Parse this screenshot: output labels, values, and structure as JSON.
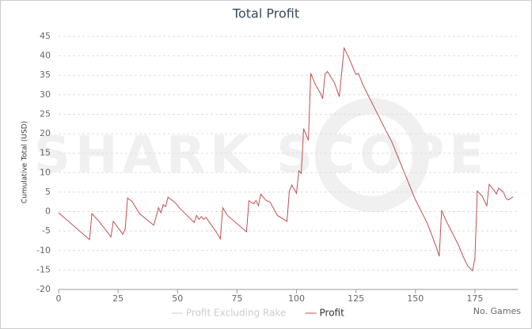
{
  "chart_data": {
    "type": "line",
    "title": "Total Profit",
    "watermark": "SHARK SCOPE",
    "y_label": "Cumulative Total (USD)",
    "x_label": "No. Games",
    "x": [
      0,
      13,
      14,
      17,
      22,
      23,
      27,
      28,
      29,
      31,
      34,
      40,
      42,
      43,
      44,
      45,
      46,
      49,
      51,
      57,
      58,
      59,
      60,
      61,
      62,
      66,
      68,
      69,
      71,
      79,
      80,
      82,
      83,
      84,
      85,
      87,
      89,
      92,
      96,
      97,
      98,
      100,
      101,
      102,
      103,
      105,
      106,
      108,
      110,
      111,
      112,
      113,
      115,
      116,
      118,
      120,
      122,
      125,
      126,
      128,
      130,
      137,
      140,
      150,
      155,
      159,
      160,
      161,
      163,
      168,
      170,
      172,
      174,
      175,
      176,
      178,
      180,
      181,
      183,
      184,
      185,
      187,
      188,
      189,
      191
    ],
    "series": [
      {
        "name": "Profit Excluding Rake",
        "color": "#cccccc",
        "visible": false,
        "values": [
          null,
          null,
          null,
          null,
          null,
          null,
          null,
          null,
          null,
          null,
          null,
          null,
          null,
          null,
          null,
          null,
          null,
          null,
          null,
          null,
          null,
          null,
          null,
          null,
          null,
          null,
          null,
          null,
          null,
          null,
          null,
          null,
          null,
          null,
          null,
          null,
          null,
          null,
          null,
          null,
          null,
          null,
          null,
          null,
          null,
          null,
          null,
          null,
          null,
          null,
          null,
          null,
          null,
          null,
          null,
          null,
          null,
          null,
          null,
          null,
          null,
          null,
          null,
          null,
          null,
          null,
          null,
          null,
          null,
          null,
          null,
          null,
          null,
          null,
          null,
          null,
          null,
          null,
          null,
          null,
          null,
          null,
          null,
          null,
          null
        ]
      },
      {
        "name": "Profit",
        "color": "#c0504d",
        "visible": true,
        "values": [
          -0.3,
          -7.2,
          -0.5,
          -2.5,
          -6.5,
          -2.5,
          -5.8,
          -4.5,
          3.5,
          2.5,
          -0.5,
          -3.5,
          1,
          -0.3,
          1.8,
          1.3,
          3.7,
          2.3,
          0.8,
          -2.8,
          -1,
          -2,
          -1.3,
          -2,
          -1.5,
          -5,
          -7,
          1,
          -1,
          -5.2,
          2.8,
          2,
          2.8,
          1.5,
          4.5,
          3,
          2.3,
          -1,
          -2.5,
          5.3,
          6.8,
          4.7,
          10.5,
          9.8,
          21.3,
          18.3,
          35.5,
          32.5,
          30.5,
          29,
          35.3,
          36,
          34,
          33,
          29.5,
          42,
          39.5,
          35.2,
          35.5,
          32.5,
          30,
          21.5,
          18,
          3,
          -3,
          -9.5,
          -11.5,
          0.3,
          -2.5,
          -8.5,
          -11.5,
          -14,
          -15.2,
          -12,
          5.3,
          4,
          1.5,
          7,
          5.5,
          4.5,
          6,
          5,
          3.5,
          3,
          3.8
        ]
      }
    ],
    "xlim": [
      0,
      193
    ],
    "xticks": [
      0,
      25,
      50,
      75,
      100,
      125,
      150,
      175
    ],
    "ylim": [
      -20,
      45
    ],
    "yticks": [
      -20,
      -15,
      -10,
      -5,
      0,
      5,
      10,
      15,
      20,
      25,
      30,
      35,
      40,
      45
    ],
    "grid": true
  }
}
